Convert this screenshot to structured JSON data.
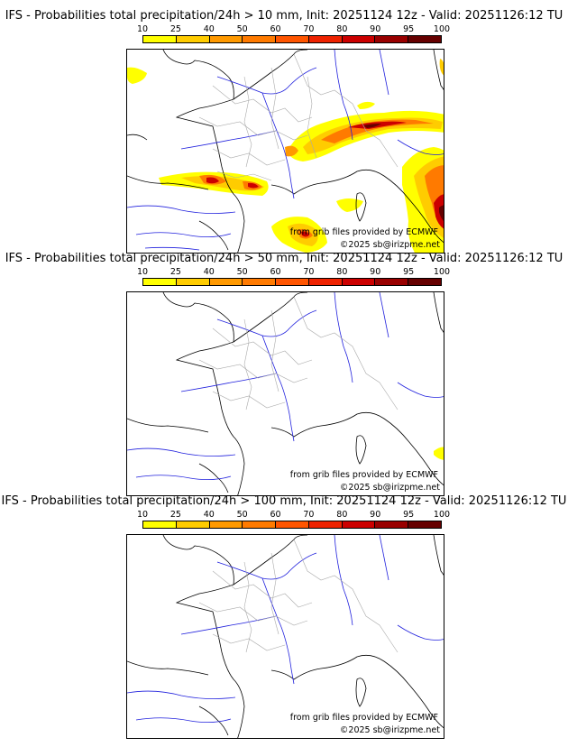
{
  "colorbar": {
    "ticks": [
      "10",
      "25",
      "40",
      "50",
      "60",
      "70",
      "80",
      "90",
      "95",
      "100"
    ],
    "colors": [
      "#ffff00",
      "#ffcc00",
      "#ff9900",
      "#ff7a00",
      "#ff5500",
      "#ee2200",
      "#cc0000",
      "#990000",
      "#660000"
    ]
  },
  "panels": [
    {
      "title": "IFS - Probabilities total precipitation/24h > 10 mm, Init: 20251124 12z - Valid: 20251126:12 TU"
    },
    {
      "title": "IFS - Probabilities total precipitation/24h > 50 mm, Init: 20251124 12z - Valid: 20251126:12 TU"
    },
    {
      "title": "IFS - Probabilities total precipitation/24h > 100 mm, Init: 20251124 12z - Valid: 20251126:12 TU"
    }
  ],
  "credits": {
    "source": "from grib files provided by ECMWF",
    "copyright": "©2025 sb@irizpme.net"
  },
  "colors": {
    "coast": "#000000",
    "rivers": "#2020dd",
    "borders": "#aaaaaa"
  }
}
